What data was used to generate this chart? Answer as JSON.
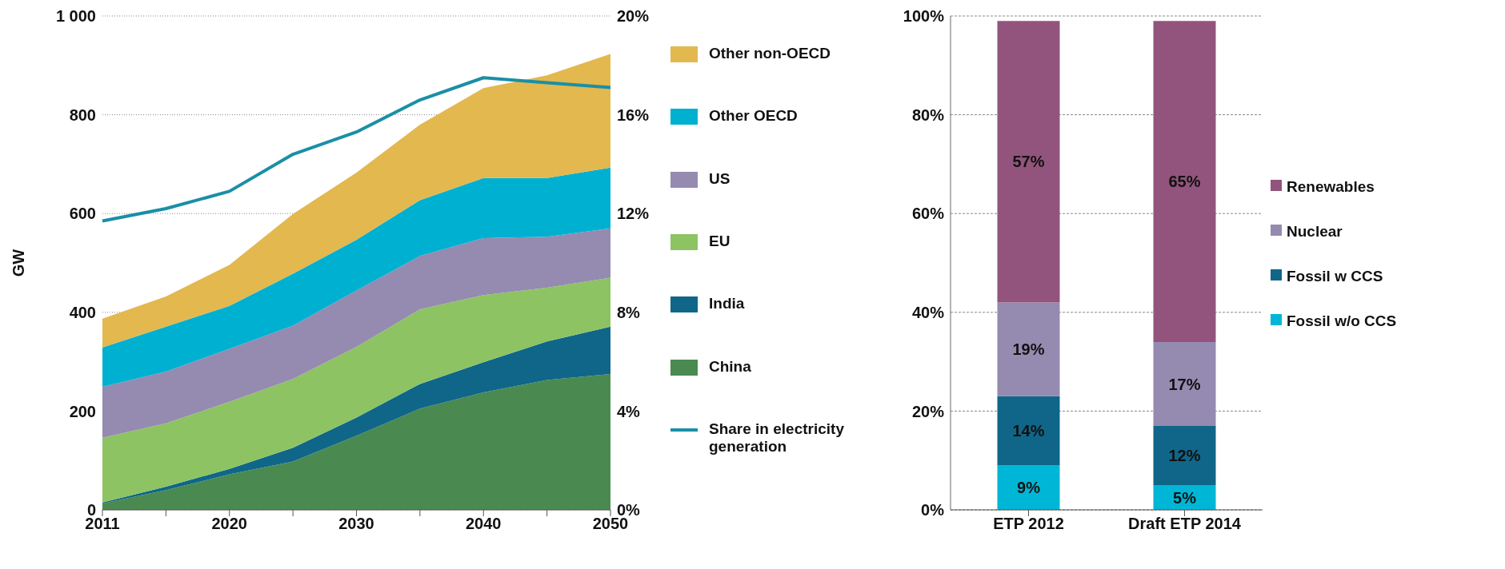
{
  "chart_data": [
    {
      "type": "area",
      "stacked": true,
      "ylabel": "GW",
      "categories": [
        "2011",
        null,
        "2020",
        null,
        "2030",
        null,
        "2040",
        null,
        "2050"
      ],
      "series": [
        {
          "name": "China",
          "color": "#4a8a50",
          "values": [
            13,
            40,
            72,
            98,
            150,
            205,
            238,
            263,
            275
          ]
        },
        {
          "name": "India",
          "color": "#0f6688",
          "values": [
            2,
            7,
            11,
            28,
            37,
            50,
            61,
            78,
            96
          ]
        },
        {
          "name": "EU",
          "color": "#8dc363",
          "values": [
            131,
            128,
            136,
            139,
            143,
            151,
            136,
            109,
            99
          ]
        },
        {
          "name": "US",
          "color": "#958ab0",
          "values": [
            103,
            105,
            107,
            108,
            114,
            108,
            115,
            103,
            100
          ]
        },
        {
          "name": "Other OECD",
          "color": "#00b0d0",
          "values": [
            80,
            91,
            87,
            105,
            103,
            113,
            122,
            119,
            123
          ]
        },
        {
          "name": "Other non-OECD",
          "color": "#e2b84f",
          "values": [
            58,
            61,
            83,
            121,
            136,
            153,
            182,
            208,
            230
          ]
        },
        {
          "name": "Share in electricity generation",
          "type": "line",
          "axis": "y2",
          "color": "#1a8fa6",
          "values": [
            11.7,
            12.2,
            12.9,
            14.4,
            15.3,
            16.6,
            17.5,
            17.3,
            17.1
          ]
        }
      ],
      "ylim": [
        0,
        1000
      ],
      "yticks": [
        0,
        200,
        400,
        600,
        800,
        {
          "value": 1000,
          "label": "1 000"
        }
      ],
      "y2lim": [
        0,
        20
      ],
      "y2ticks": [
        {
          "value": 0,
          "label": "0%"
        },
        {
          "value": 4,
          "label": "4%"
        },
        {
          "value": 8,
          "label": "8%"
        },
        {
          "value": 12,
          "label": "12%"
        },
        {
          "value": 16,
          "label": "16%"
        },
        {
          "value": 20,
          "label": "20%"
        }
      ],
      "grid": "y",
      "legend": "right"
    },
    {
      "type": "bar",
      "stacked": true,
      "categories": [
        "ETP 2012",
        "Draft ETP 2014"
      ],
      "series": [
        {
          "name": "Fossil w/o CCS",
          "color": "#00b6d6",
          "values": [
            9,
            5
          ],
          "value_labels": [
            "9%",
            "5%"
          ]
        },
        {
          "name": "Fossil w CCS",
          "color": "#0f6688",
          "values": [
            14,
            12
          ],
          "value_labels": [
            "14%",
            "12%"
          ]
        },
        {
          "name": "Nuclear",
          "color": "#958ab0",
          "values": [
            19,
            17
          ],
          "value_labels": [
            "19%",
            "17%"
          ]
        },
        {
          "name": "Renewables",
          "color": "#92547c",
          "values": [
            57,
            65
          ],
          "value_labels": [
            "57%",
            "65%"
          ]
        }
      ],
      "ylim": [
        0,
        100
      ],
      "yticks": [
        {
          "value": 0,
          "label": "0%"
        },
        {
          "value": 20,
          "label": "20%"
        },
        {
          "value": 40,
          "label": "40%"
        },
        {
          "value": 60,
          "label": "60%"
        },
        {
          "value": 80,
          "label": "80%"
        },
        {
          "value": 100,
          "label": "100%"
        }
      ],
      "grid": "y",
      "legend": "right"
    }
  ]
}
